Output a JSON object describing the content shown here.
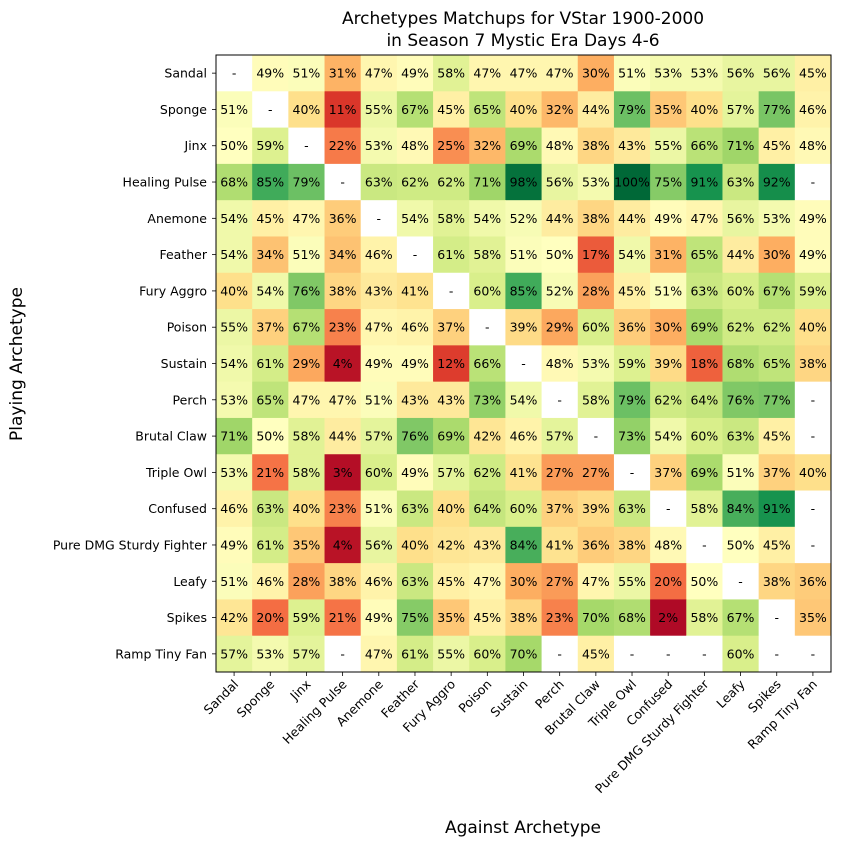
{
  "chart_data": {
    "type": "heatmap",
    "title_line1": "Archetypes Matchups for VStar 1900-2000",
    "title_line2": "in Season 7 Mystic Era Days 4-6",
    "xlabel": "Against Archetype",
    "ylabel": "Playing Archetype",
    "color_scale": "red-yellow-green (0%=red, 50%=yellow, 100%=green)",
    "missing_label": "-",
    "rows": [
      "Sandal",
      "Sponge",
      "Jinx",
      "Healing Pulse",
      "Anemone",
      "Feather",
      "Fury Aggro",
      "Poison",
      "Sustain",
      "Perch",
      "Brutal Claw",
      "Triple Owl",
      "Confused",
      "Pure DMG Sturdy Fighter",
      "Leafy",
      "Spikes",
      "Ramp Tiny Fan"
    ],
    "columns": [
      "Sandal",
      "Sponge",
      "Jinx",
      "Healing Pulse",
      "Anemone",
      "Feather",
      "Fury Aggro",
      "Poison",
      "Sustain",
      "Perch",
      "Brutal Claw",
      "Triple Owl",
      "Confused",
      "Pure DMG Sturdy Fighter",
      "Leafy",
      "Spikes",
      "Ramp Tiny Fan"
    ],
    "values": [
      [
        null,
        49,
        51,
        31,
        47,
        49,
        58,
        47,
        47,
        47,
        30,
        51,
        53,
        53,
        56,
        56,
        45
      ],
      [
        51,
        null,
        40,
        11,
        55,
        67,
        45,
        65,
        40,
        32,
        44,
        79,
        35,
        40,
        57,
        77,
        46
      ],
      [
        50,
        59,
        null,
        22,
        53,
        48,
        25,
        32,
        69,
        48,
        38,
        43,
        55,
        66,
        71,
        45,
        48
      ],
      [
        68,
        85,
        79,
        null,
        63,
        62,
        62,
        71,
        98,
        56,
        53,
        100,
        75,
        91,
        63,
        92,
        null
      ],
      [
        54,
        45,
        47,
        36,
        null,
        54,
        58,
        54,
        52,
        44,
        38,
        44,
        49,
        47,
        56,
        53,
        49
      ],
      [
        54,
        34,
        51,
        34,
        46,
        null,
        61,
        58,
        51,
        50,
        17,
        54,
        31,
        65,
        44,
        30,
        49
      ],
      [
        40,
        54,
        76,
        38,
        43,
        41,
        null,
        60,
        85,
        52,
        28,
        45,
        51,
        63,
        60,
        67,
        59
      ],
      [
        55,
        37,
        67,
        23,
        47,
        46,
        37,
        null,
        39,
        29,
        60,
        36,
        30,
        69,
        62,
        62,
        40
      ],
      [
        54,
        61,
        29,
        4,
        49,
        49,
        12,
        66,
        null,
        48,
        53,
        59,
        39,
        18,
        68,
        65,
        38
      ],
      [
        53,
        65,
        47,
        47,
        51,
        43,
        43,
        73,
        54,
        null,
        58,
        79,
        62,
        64,
        76,
        77,
        null
      ],
      [
        71,
        50,
        58,
        44,
        57,
        76,
        69,
        42,
        46,
        57,
        null,
        73,
        54,
        60,
        63,
        45,
        null
      ],
      [
        53,
        21,
        58,
        3,
        60,
        49,
        57,
        62,
        41,
        27,
        27,
        null,
        37,
        69,
        51,
        37,
        40
      ],
      [
        46,
        63,
        40,
        23,
        51,
        63,
        40,
        64,
        60,
        37,
        39,
        63,
        null,
        58,
        84,
        91,
        null
      ],
      [
        49,
        61,
        35,
        4,
        56,
        40,
        42,
        43,
        84,
        41,
        36,
        38,
        48,
        null,
        50,
        45,
        null
      ],
      [
        51,
        46,
        28,
        38,
        46,
        63,
        45,
        47,
        30,
        27,
        47,
        55,
        20,
        50,
        null,
        38,
        36
      ],
      [
        42,
        20,
        59,
        21,
        49,
        75,
        35,
        45,
        38,
        23,
        70,
        68,
        2,
        58,
        67,
        null,
        35
      ],
      [
        57,
        53,
        57,
        null,
        47,
        61,
        55,
        60,
        70,
        null,
        45,
        null,
        null,
        null,
        60,
        null,
        null
      ]
    ]
  }
}
